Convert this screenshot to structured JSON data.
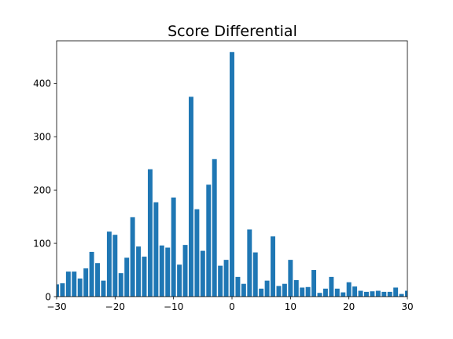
{
  "chart_data": {
    "type": "bar",
    "title": "Score Differential",
    "xlabel": "",
    "ylabel": "",
    "xlim": [
      -30,
      30
    ],
    "ylim": [
      0,
      480
    ],
    "x_ticks": [
      -30,
      -20,
      -10,
      0,
      10,
      20,
      30
    ],
    "x_tick_labels": [
      "−30",
      "−20",
      "−10",
      "0",
      "10",
      "20",
      "30"
    ],
    "y_ticks": [
      0,
      100,
      200,
      300,
      400
    ],
    "y_tick_labels": [
      "0",
      "100",
      "200",
      "300",
      "400"
    ],
    "grid": false,
    "legend": "none",
    "color": "#1f77b4",
    "x": [
      -30,
      -29,
      -28,
      -27,
      -26,
      -25,
      -24,
      -23,
      -22,
      -21,
      -20,
      -19,
      -18,
      -17,
      -16,
      -15,
      -14,
      -13,
      -12,
      -11,
      -10,
      -9,
      -8,
      -7,
      -6,
      -5,
      -4,
      -3,
      -2,
      -1,
      0,
      1,
      2,
      3,
      4,
      5,
      6,
      7,
      8,
      9,
      10,
      11,
      12,
      13,
      14,
      15,
      16,
      17,
      18,
      19,
      20,
      21,
      22,
      23,
      24,
      25,
      26,
      27,
      28,
      29,
      30
    ],
    "values": [
      23,
      25,
      47,
      47,
      34,
      53,
      84,
      63,
      30,
      122,
      116,
      44,
      73,
      149,
      94,
      75,
      239,
      177,
      96,
      92,
      186,
      60,
      97,
      375,
      164,
      86,
      210,
      258,
      58,
      69,
      459,
      37,
      24,
      126,
      83,
      15,
      30,
      113,
      20,
      24,
      69,
      31,
      17,
      18,
      50,
      7,
      15,
      37,
      15,
      8,
      27,
      19,
      11,
      9,
      10,
      11,
      9,
      9,
      17,
      5,
      11
    ]
  }
}
